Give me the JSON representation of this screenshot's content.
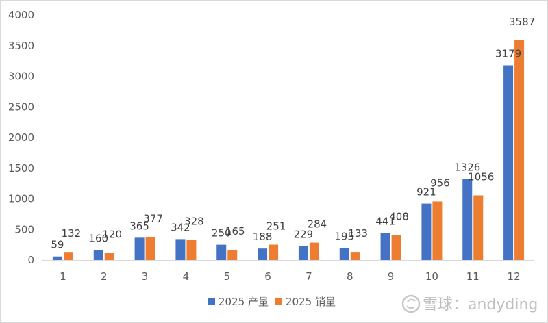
{
  "chart_data": {
    "type": "bar",
    "title": "",
    "xlabel": "",
    "ylabel": "",
    "categories": [
      "1",
      "2",
      "3",
      "4",
      "5",
      "6",
      "7",
      "8",
      "9",
      "10",
      "11",
      "12"
    ],
    "series": [
      {
        "name": "2025 产量",
        "color": "#4472C4",
        "values": [
          59,
          160,
          365,
          342,
          250,
          188,
          229,
          195,
          441,
          921,
          1326,
          3179
        ]
      },
      {
        "name": "2025 销量",
        "color": "#ED7D31",
        "values": [
          132,
          120,
          377,
          328,
          165,
          251,
          284,
          133,
          408,
          956,
          1056,
          3587
        ]
      }
    ],
    "ylim": [
      0,
      4000
    ],
    "yticks": [
      0,
      500,
      1000,
      1500,
      2000,
      2500,
      3000,
      3500,
      4000
    ],
    "grid": false,
    "legend_position": "bottom"
  },
  "watermark": {
    "text": "雪球：andyding",
    "icon": "xueqiu-snowball-icon"
  }
}
